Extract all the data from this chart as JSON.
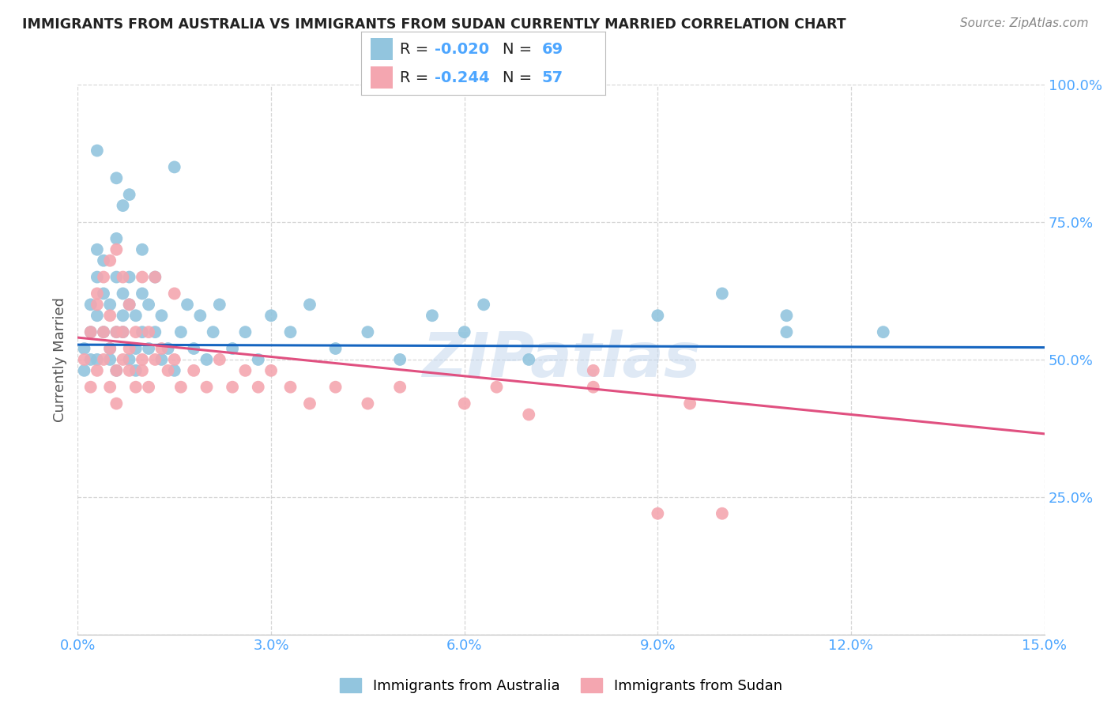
{
  "title": "IMMIGRANTS FROM AUSTRALIA VS IMMIGRANTS FROM SUDAN CURRENTLY MARRIED CORRELATION CHART",
  "source": "Source: ZipAtlas.com",
  "ylabel": "Currently Married",
  "xlim": [
    0.0,
    0.15
  ],
  "ylim": [
    0.0,
    1.0
  ],
  "xticks": [
    0.0,
    0.03,
    0.06,
    0.09,
    0.12,
    0.15
  ],
  "xticklabels": [
    "0.0%",
    "3.0%",
    "6.0%",
    "9.0%",
    "12.0%",
    "15.0%"
  ],
  "yticks": [
    0.0,
    0.25,
    0.5,
    0.75,
    1.0
  ],
  "yticklabels": [
    "",
    "25.0%",
    "50.0%",
    "75.0%",
    "100.0%"
  ],
  "australia_color": "#92c5de",
  "sudan_color": "#f4a6b0",
  "australia_line_color": "#1565C0",
  "sudan_line_color": "#e05080",
  "R_australia": -0.02,
  "N_australia": 69,
  "R_sudan": -0.244,
  "N_sudan": 57,
  "australia_trend_y0": 0.527,
  "australia_trend_y1": 0.522,
  "sudan_trend_y0": 0.54,
  "sudan_trend_y1": 0.365,
  "australia_scatter_x": [
    0.001,
    0.001,
    0.002,
    0.002,
    0.002,
    0.003,
    0.003,
    0.003,
    0.003,
    0.004,
    0.004,
    0.004,
    0.005,
    0.005,
    0.005,
    0.006,
    0.006,
    0.006,
    0.006,
    0.007,
    0.007,
    0.007,
    0.008,
    0.008,
    0.008,
    0.009,
    0.009,
    0.009,
    0.01,
    0.01,
    0.01,
    0.011,
    0.011,
    0.012,
    0.012,
    0.013,
    0.013,
    0.014,
    0.015,
    0.016,
    0.017,
    0.018,
    0.019,
    0.02,
    0.021,
    0.022,
    0.024,
    0.026,
    0.028,
    0.03,
    0.033,
    0.036,
    0.04,
    0.045,
    0.05,
    0.055,
    0.06,
    0.063,
    0.07,
    0.09,
    0.1,
    0.11,
    0.11,
    0.125,
    0.015,
    0.007,
    0.008,
    0.003,
    0.006
  ],
  "australia_scatter_y": [
    0.52,
    0.48,
    0.55,
    0.6,
    0.5,
    0.65,
    0.58,
    0.7,
    0.5,
    0.62,
    0.55,
    0.68,
    0.52,
    0.6,
    0.5,
    0.65,
    0.55,
    0.48,
    0.72,
    0.58,
    0.62,
    0.55,
    0.5,
    0.65,
    0.6,
    0.52,
    0.58,
    0.48,
    0.55,
    0.62,
    0.7,
    0.52,
    0.6,
    0.55,
    0.65,
    0.5,
    0.58,
    0.52,
    0.48,
    0.55,
    0.6,
    0.52,
    0.58,
    0.5,
    0.55,
    0.6,
    0.52,
    0.55,
    0.5,
    0.58,
    0.55,
    0.6,
    0.52,
    0.55,
    0.5,
    0.58,
    0.55,
    0.6,
    0.5,
    0.58,
    0.62,
    0.55,
    0.58,
    0.55,
    0.85,
    0.78,
    0.8,
    0.88,
    0.83
  ],
  "sudan_scatter_x": [
    0.001,
    0.002,
    0.002,
    0.003,
    0.003,
    0.004,
    0.004,
    0.005,
    0.005,
    0.005,
    0.006,
    0.006,
    0.006,
    0.007,
    0.007,
    0.008,
    0.008,
    0.009,
    0.009,
    0.01,
    0.01,
    0.011,
    0.011,
    0.012,
    0.013,
    0.014,
    0.015,
    0.016,
    0.018,
    0.02,
    0.022,
    0.024,
    0.026,
    0.028,
    0.03,
    0.033,
    0.036,
    0.04,
    0.045,
    0.05,
    0.06,
    0.065,
    0.07,
    0.08,
    0.09,
    0.095,
    0.1,
    0.08,
    0.004,
    0.005,
    0.006,
    0.007,
    0.003,
    0.008,
    0.01,
    0.012,
    0.015
  ],
  "sudan_scatter_y": [
    0.5,
    0.55,
    0.45,
    0.6,
    0.48,
    0.55,
    0.5,
    0.52,
    0.45,
    0.58,
    0.48,
    0.55,
    0.42,
    0.5,
    0.55,
    0.48,
    0.52,
    0.45,
    0.55,
    0.5,
    0.48,
    0.55,
    0.45,
    0.5,
    0.52,
    0.48,
    0.5,
    0.45,
    0.48,
    0.45,
    0.5,
    0.45,
    0.48,
    0.45,
    0.48,
    0.45,
    0.42,
    0.45,
    0.42,
    0.45,
    0.42,
    0.45,
    0.4,
    0.45,
    0.22,
    0.42,
    0.22,
    0.48,
    0.65,
    0.68,
    0.7,
    0.65,
    0.62,
    0.6,
    0.65,
    0.65,
    0.62
  ],
  "watermark": "ZIPatlas",
  "grid_color": "#cccccc",
  "title_color": "#222222",
  "axis_label_color": "#555555",
  "tick_label_color": "#4da6ff",
  "source_color": "#888888",
  "legend_text_color": "#222222",
  "legend_r_color": "#4da6ff"
}
